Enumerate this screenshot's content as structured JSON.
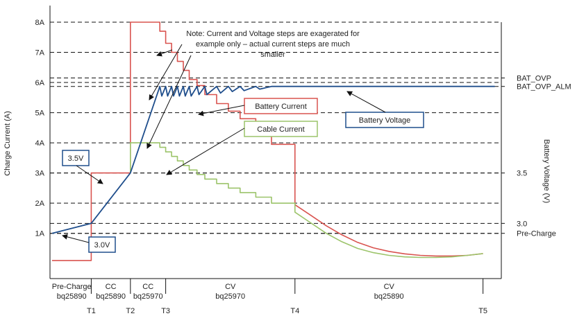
{
  "chart_data": {
    "type": "line",
    "title": "",
    "left_axis": {
      "label": "Charge Current (A)",
      "ticks": [
        "1A",
        "2A",
        "3A",
        "4A",
        "5A",
        "6A",
        "7A",
        "8A"
      ],
      "tick_values": [
        1,
        2,
        3,
        4,
        5,
        6,
        7,
        8
      ],
      "range": [
        0,
        8
      ]
    },
    "right_axis": {
      "label": "Battery Voltage (V)",
      "ticks": [
        {
          "label": "BAT_OVP",
          "current_level": 6.15
        },
        {
          "label": "BAT_OVP_ALM",
          "current_level": 5.87
        },
        {
          "label": "3.5",
          "current_level": 3.0
        },
        {
          "label": "3.0",
          "current_level": 1.33
        },
        {
          "label": "Pre-Charge",
          "current_level": 1.0
        }
      ]
    },
    "x_markers": [
      {
        "label": "T1",
        "t": 1.0
      },
      {
        "label": "T2",
        "t": 2.0
      },
      {
        "label": "T3",
        "t": 2.9
      },
      {
        "label": "T4",
        "t": 6.2
      },
      {
        "label": "T5",
        "t": 11.0
      }
    ],
    "phases": [
      {
        "line1": "Pre-Charge",
        "line2": "bq25890",
        "t": 0.5
      },
      {
        "line1": "CC",
        "line2": "bq25890",
        "t": 1.5
      },
      {
        "line1": "CC",
        "line2": "bq25970",
        "t": 2.45
      },
      {
        "line1": "CV",
        "line2": "bq25970",
        "t": 4.55
      },
      {
        "line1": "CV",
        "line2": "bq25890",
        "t": 8.6
      }
    ],
    "note": {
      "lines": [
        "Note: Current and Voltage steps are exagerated for",
        "example only – actual current steps are much",
        "smaller"
      ]
    },
    "series": [
      {
        "name": "Battery Current",
        "color": "#d9534f",
        "x": [
          0,
          1.0,
          1.0,
          1.0,
          2.0,
          2.0,
          2.0,
          2.75,
          2.75,
          2.9,
          2.9,
          3.05,
          3.05,
          3.2,
          3.2,
          3.35,
          3.35,
          3.5,
          3.5,
          3.7,
          3.7,
          3.9,
          3.9,
          4.2,
          4.2,
          4.5,
          4.5,
          4.8,
          4.8,
          5.2,
          5.2,
          5.6,
          5.6,
          6.2,
          6.2,
          6.6,
          7.0,
          7.4,
          7.8,
          8.2,
          8.6,
          9.0,
          9.4,
          9.8,
          10.2,
          10.6,
          11.0
        ],
        "y": [
          0.1,
          0.1,
          1.2,
          3.0,
          3.0,
          5.0,
          8.0,
          8.0,
          7.7,
          7.7,
          7.3,
          7.3,
          7.0,
          7.0,
          6.7,
          6.7,
          6.4,
          6.4,
          6.1,
          6.1,
          5.9,
          5.9,
          5.6,
          5.6,
          5.3,
          5.3,
          5.05,
          5.05,
          4.8,
          4.8,
          4.5,
          4.5,
          3.95,
          3.95,
          1.95,
          1.6,
          1.25,
          0.95,
          0.7,
          0.52,
          0.4,
          0.32,
          0.27,
          0.25,
          0.25,
          0.27,
          0.33
        ]
      },
      {
        "name": "Cable Current",
        "color": "#9cc46a",
        "x": [
          2.0,
          2.0,
          2.75,
          2.75,
          2.9,
          2.9,
          3.05,
          3.05,
          3.2,
          3.2,
          3.35,
          3.35,
          3.5,
          3.5,
          3.7,
          3.7,
          3.9,
          3.9,
          4.2,
          4.2,
          4.5,
          4.5,
          4.8,
          4.8,
          5.2,
          5.2,
          5.6,
          5.6,
          6.2,
          6.2,
          6.6,
          7.0,
          7.4,
          7.8,
          8.2,
          8.6,
          9.0,
          9.4,
          9.8,
          10.2,
          10.6,
          11.0
        ],
        "y": [
          3.0,
          4.0,
          4.0,
          3.85,
          3.85,
          3.7,
          3.7,
          3.55,
          3.55,
          3.4,
          3.4,
          3.25,
          3.25,
          3.1,
          3.1,
          2.95,
          2.95,
          2.8,
          2.8,
          2.65,
          2.65,
          2.5,
          2.5,
          2.35,
          2.35,
          2.2,
          2.2,
          2.0,
          2.0,
          1.7,
          1.35,
          1.0,
          0.72,
          0.5,
          0.36,
          0.27,
          0.22,
          0.2,
          0.2,
          0.22,
          0.27,
          0.33
        ]
      },
      {
        "name": "Battery Voltage",
        "color": "#1f4e8c",
        "x": [
          0,
          1.0,
          2.0,
          2.75,
          2.8,
          2.9,
          2.95,
          3.05,
          3.1,
          3.2,
          3.25,
          3.35,
          3.4,
          3.5,
          3.55,
          3.7,
          3.75,
          3.9,
          3.95,
          4.2,
          4.3,
          4.5,
          4.6,
          4.8,
          4.9,
          5.2,
          5.3,
          5.6,
          6.2,
          7.0,
          8.0,
          9.0,
          10.0,
          11.0,
          11.3
        ],
        "y": [
          1.0,
          1.33,
          3.0,
          5.87,
          5.55,
          5.87,
          5.55,
          5.87,
          5.55,
          5.87,
          5.55,
          5.87,
          5.55,
          5.87,
          5.55,
          5.87,
          5.6,
          5.87,
          5.6,
          5.87,
          5.65,
          5.87,
          5.7,
          5.87,
          5.73,
          5.87,
          5.78,
          5.87,
          5.87,
          5.87,
          5.87,
          5.87,
          5.87,
          5.87,
          5.87
        ]
      }
    ],
    "callouts": [
      {
        "text": "3.5V"
      },
      {
        "text": "3.0V"
      },
      {
        "text": "Battery Current"
      },
      {
        "text": "Cable Current"
      },
      {
        "text": "Battery Voltage"
      }
    ]
  }
}
